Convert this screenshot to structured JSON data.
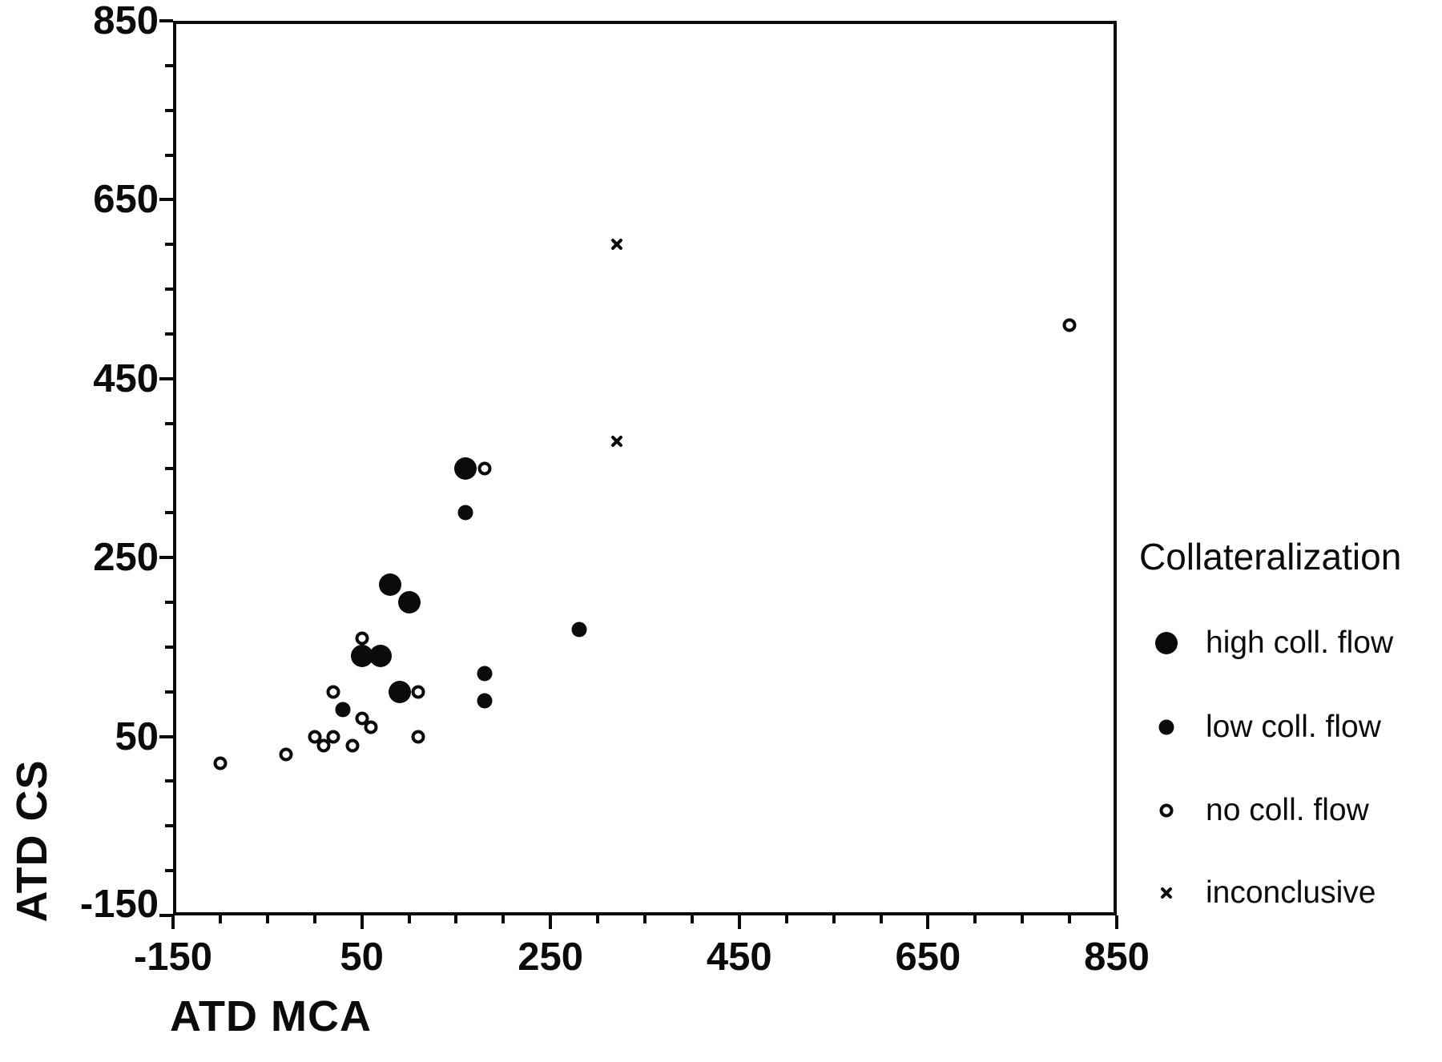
{
  "figure": {
    "background_color": "#ffffff",
    "ink_color": "#0b0b0b",
    "kind": "scanned scatter plot figure"
  },
  "axes": {
    "x_title": "ATD MCA",
    "y_title": "ATD CS",
    "x_major_tick_labels": [
      "-150",
      "50",
      "250",
      "450",
      "650",
      "850"
    ],
    "y_major_tick_labels": [
      "850",
      "650",
      "450",
      "250",
      "50",
      "-150"
    ]
  },
  "legend": {
    "title": "Collateralization",
    "items": [
      {
        "key": "high",
        "label": "high coll. flow",
        "marker": "large-filled-circle"
      },
      {
        "key": "low",
        "label": "low coll. flow",
        "marker": "small-filled-circle"
      },
      {
        "key": "no",
        "label": "no coll. flow",
        "marker": "open-circle"
      },
      {
        "key": "x",
        "label": "inconclusive",
        "marker": "x-cross"
      }
    ]
  },
  "chart_data": {
    "type": "scatter",
    "title": "",
    "xlabel": "ATD MCA",
    "ylabel": "ATD CS",
    "xlim": [
      -150,
      850
    ],
    "ylim": [
      -150,
      850
    ],
    "x_major_ticks": [
      -150,
      50,
      250,
      450,
      650,
      850
    ],
    "y_major_ticks": [
      850,
      650,
      450,
      250,
      50,
      -150
    ],
    "minor_tick_step": 50,
    "grid": false,
    "legend_title": "Collateralization",
    "legend_position": "right",
    "series": [
      {
        "name": "high coll. flow",
        "marker": "large-filled-circle",
        "points": [
          [
            160,
            350
          ],
          [
            80,
            220
          ],
          [
            100,
            200
          ],
          [
            50,
            140
          ],
          [
            70,
            140
          ],
          [
            90,
            100
          ]
        ]
      },
      {
        "name": "low coll. flow",
        "marker": "small-filled-circle",
        "points": [
          [
            160,
            300
          ],
          [
            280,
            170
          ],
          [
            180,
            120
          ],
          [
            180,
            90
          ],
          [
            30,
            80
          ]
        ]
      },
      {
        "name": "no coll. flow",
        "marker": "open-circle",
        "points": [
          [
            180,
            350
          ],
          [
            800,
            510
          ],
          [
            50,
            160
          ],
          [
            110,
            100
          ],
          [
            20,
            100
          ],
          [
            50,
            70
          ],
          [
            60,
            60
          ],
          [
            110,
            50
          ],
          [
            0,
            50
          ],
          [
            20,
            50
          ],
          [
            40,
            40
          ],
          [
            10,
            40
          ],
          [
            -30,
            30
          ],
          [
            -100,
            20
          ]
        ]
      },
      {
        "name": "inconclusive",
        "marker": "x-cross",
        "points": [
          [
            320,
            600
          ],
          [
            320,
            380
          ]
        ]
      }
    ]
  }
}
